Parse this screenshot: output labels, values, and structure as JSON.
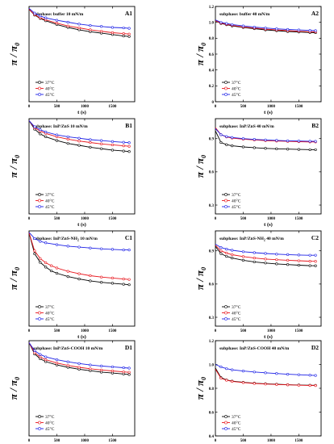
{
  "colors": {
    "37": "#000000",
    "40": "#e8141b",
    "45": "#1c20e6"
  },
  "chart_data": [
    {
      "id": "A1",
      "type": "line",
      "title": "subphase: buffer   10 mN/m",
      "tag": "A1",
      "xlabel": "t (s)",
      "ylabel": "π / π",
      "ylabel_sub": "0",
      "xlim": [
        0,
        1900
      ],
      "ylim": [
        0,
        1.0
      ],
      "yticks": [],
      "xticks": [
        0,
        500,
        1000,
        1500
      ],
      "legend_position": "lower-left",
      "grid": false,
      "series": [
        {
          "name": "37°C",
          "key": "37",
          "x": [
            0,
            100,
            200,
            300,
            500,
            700,
            900,
            1100,
            1300,
            1500,
            1700,
            1800
          ],
          "y": [
            0.97,
            0.91,
            0.875,
            0.85,
            0.81,
            0.78,
            0.755,
            0.735,
            0.72,
            0.705,
            0.69,
            0.685
          ]
        },
        {
          "name": "40°C",
          "key": "40",
          "x": [
            0,
            100,
            200,
            300,
            500,
            700,
            900,
            1100,
            1300,
            1500,
            1700,
            1800
          ],
          "y": [
            0.97,
            0.915,
            0.88,
            0.86,
            0.825,
            0.795,
            0.775,
            0.755,
            0.74,
            0.725,
            0.715,
            0.71
          ]
        },
        {
          "name": "45°C",
          "key": "45",
          "x": [
            0,
            100,
            200,
            300,
            500,
            700,
            900,
            1100,
            1300,
            1500,
            1700,
            1800
          ],
          "y": [
            0.98,
            0.93,
            0.9,
            0.88,
            0.855,
            0.835,
            0.815,
            0.8,
            0.79,
            0.78,
            0.775,
            0.77
          ]
        }
      ]
    },
    {
      "id": "A2",
      "type": "line",
      "title": "subphase: buffer   40 mN/m",
      "tag": "A2",
      "xlabel": "t (s)",
      "ylabel": "π / π",
      "ylabel_sub": "0",
      "xlim": [
        0,
        1900
      ],
      "ylim": [
        0,
        1.2
      ],
      "yticks": [
        0,
        0.2,
        0.4,
        0.6,
        0.8,
        1.0,
        1.2
      ],
      "xticks": [
        0,
        500,
        1000,
        1500
      ],
      "legend_position": "lower-left",
      "grid": false,
      "series": [
        {
          "name": "37°C",
          "key": "37",
          "x": [
            0,
            100,
            200,
            300,
            500,
            700,
            900,
            1100,
            1300,
            1500,
            1700,
            1800
          ],
          "y": [
            1.02,
            0.985,
            0.97,
            0.955,
            0.935,
            0.92,
            0.905,
            0.895,
            0.885,
            0.878,
            0.872,
            0.87
          ]
        },
        {
          "name": "40°C",
          "key": "40",
          "x": [
            0,
            100,
            200,
            300,
            500,
            700,
            900,
            1100,
            1300,
            1500,
            1700,
            1800
          ],
          "y": [
            1.02,
            0.99,
            0.975,
            0.962,
            0.942,
            0.928,
            0.914,
            0.904,
            0.895,
            0.888,
            0.882,
            0.88
          ]
        },
        {
          "name": "45°C",
          "key": "45",
          "x": [
            0,
            100,
            200,
            300,
            500,
            700,
            900,
            1100,
            1300,
            1500,
            1700,
            1800
          ],
          "y": [
            1.03,
            1.0,
            0.985,
            0.972,
            0.955,
            0.94,
            0.928,
            0.918,
            0.91,
            0.904,
            0.898,
            0.895
          ]
        }
      ]
    },
    {
      "id": "B1",
      "type": "line",
      "title": "subphase: InP/ZnS   10 mN/m",
      "tag": "B1",
      "xlabel": "t (s)",
      "ylabel": "π / π",
      "ylabel_sub": "0",
      "xlim": [
        0,
        1900
      ],
      "ylim": [
        0,
        1.0
      ],
      "yticks": [],
      "xticks": [
        0,
        500,
        1000,
        1500
      ],
      "legend_position": "lower-left",
      "grid": false,
      "series": [
        {
          "name": "37°C",
          "key": "37",
          "x": [
            0,
            100,
            200,
            300,
            500,
            700,
            900,
            1100,
            1300,
            1500,
            1700,
            1800
          ],
          "y": [
            0.98,
            0.89,
            0.84,
            0.81,
            0.77,
            0.74,
            0.72,
            0.7,
            0.685,
            0.67,
            0.66,
            0.655
          ]
        },
        {
          "name": "40°C",
          "key": "40",
          "x": [
            0,
            100,
            200,
            300,
            500,
            700,
            900,
            1100,
            1300,
            1500,
            1700,
            1800
          ],
          "y": [
            0.98,
            0.905,
            0.87,
            0.845,
            0.81,
            0.785,
            0.765,
            0.75,
            0.735,
            0.725,
            0.715,
            0.71
          ]
        },
        {
          "name": "45°C",
          "key": "45",
          "x": [
            0,
            100,
            200,
            300,
            500,
            700,
            900,
            1100,
            1300,
            1500,
            1700,
            1800
          ],
          "y": [
            0.98,
            0.915,
            0.885,
            0.86,
            0.83,
            0.81,
            0.795,
            0.78,
            0.77,
            0.76,
            0.752,
            0.748
          ]
        }
      ]
    },
    {
      "id": "B2",
      "type": "line",
      "title": "subphase: InP/ZnS   40 mN/m",
      "tag": "B2",
      "xlabel": "t (s)",
      "ylabel": "π / π",
      "ylabel_sub": "0",
      "xlim": [
        0,
        1900
      ],
      "ylim": [
        0.22,
        1.08
      ],
      "yticks": [
        0.3,
        0.6,
        0.9
      ],
      "xticks": [
        0,
        500,
        1000,
        1500
      ],
      "legend_position": "lower-left",
      "grid": false,
      "series": [
        {
          "name": "37°C",
          "key": "37",
          "x": [
            0,
            100,
            200,
            300,
            500,
            700,
            900,
            1100,
            1300,
            1500,
            1700,
            1800
          ],
          "y": [
            0.97,
            0.865,
            0.845,
            0.835,
            0.825,
            0.818,
            0.812,
            0.808,
            0.805,
            0.802,
            0.8,
            0.8
          ]
        },
        {
          "name": "40°C",
          "key": "40",
          "x": [
            0,
            100,
            200,
            300,
            500,
            700,
            900,
            1100,
            1300,
            1500,
            1700,
            1800
          ],
          "y": [
            1.0,
            0.935,
            0.915,
            0.905,
            0.895,
            0.888,
            0.882,
            0.878,
            0.875,
            0.872,
            0.87,
            0.87
          ]
        },
        {
          "name": "45°C",
          "key": "45",
          "x": [
            0,
            100,
            200,
            300,
            500,
            700,
            900,
            1100,
            1300,
            1500,
            1700,
            1800
          ],
          "y": [
            0.99,
            0.935,
            0.918,
            0.91,
            0.9,
            0.893,
            0.888,
            0.884,
            0.88,
            0.878,
            0.876,
            0.875
          ]
        }
      ]
    },
    {
      "id": "C1",
      "type": "line",
      "title": "subphase: InP/ZnS-NH",
      "title_sub": "2",
      "title_tail": "   10 mN/m",
      "tag": "C1",
      "xlabel": "t (s)",
      "ylabel": "π / π",
      "ylabel_sub": "0",
      "xlim": [
        0,
        1900
      ],
      "ylim": [
        0,
        1.0
      ],
      "yticks": [],
      "xticks": [
        0,
        500,
        1000,
        1500
      ],
      "legend_position": "lower-left",
      "grid": false,
      "series": [
        {
          "name": "37°C",
          "key": "37",
          "x": [
            0,
            100,
            200,
            300,
            400,
            500,
            700,
            900,
            1100,
            1300,
            1500,
            1700,
            1800
          ],
          "y": [
            0.98,
            0.76,
            0.67,
            0.62,
            0.58,
            0.555,
            0.52,
            0.495,
            0.475,
            0.46,
            0.45,
            0.44,
            0.435
          ]
        },
        {
          "name": "40°C",
          "key": "40",
          "x": [
            0,
            100,
            200,
            300,
            400,
            500,
            700,
            900,
            1100,
            1300,
            1500,
            1700,
            1800
          ],
          "y": [
            0.98,
            0.79,
            0.71,
            0.665,
            0.635,
            0.61,
            0.575,
            0.55,
            0.53,
            0.515,
            0.505,
            0.495,
            0.49
          ]
        },
        {
          "name": "45°C",
          "key": "45",
          "x": [
            0,
            100,
            200,
            300,
            500,
            700,
            900,
            1100,
            1300,
            1500,
            1700,
            1800
          ],
          "y": [
            0.985,
            0.92,
            0.89,
            0.875,
            0.855,
            0.84,
            0.83,
            0.82,
            0.812,
            0.806,
            0.8,
            0.8
          ]
        }
      ]
    },
    {
      "id": "C2",
      "type": "line",
      "title": "subphase: InP/ZnS-NH",
      "title_sub": "2",
      "title_tail": "   40 mN/m",
      "tag": "C2",
      "xlabel": "t (s)",
      "ylabel": "π / π",
      "ylabel_sub": "0",
      "xlim": [
        0,
        1900
      ],
      "ylim": [
        0.22,
        1.08
      ],
      "yticks": [
        0.3,
        0.6,
        0.9
      ],
      "xticks": [
        0,
        500,
        1000,
        1500
      ],
      "legend_position": "lower-left",
      "grid": false,
      "series": [
        {
          "name": "37°C",
          "key": "37",
          "x": [
            0,
            100,
            200,
            300,
            500,
            700,
            900,
            1100,
            1300,
            1500,
            1700,
            1800
          ],
          "y": [
            0.94,
            0.875,
            0.85,
            0.835,
            0.815,
            0.8,
            0.79,
            0.782,
            0.776,
            0.77,
            0.766,
            0.765
          ]
        },
        {
          "name": "40°C",
          "key": "40",
          "x": [
            0,
            100,
            200,
            300,
            500,
            700,
            900,
            1100,
            1300,
            1500,
            1700,
            1800
          ],
          "y": [
            0.95,
            0.9,
            0.88,
            0.865,
            0.848,
            0.835,
            0.826,
            0.82,
            0.815,
            0.81,
            0.806,
            0.805
          ]
        },
        {
          "name": "45°C",
          "key": "45",
          "x": [
            0,
            100,
            200,
            300,
            500,
            700,
            900,
            1100,
            1300,
            1500,
            1700,
            1800
          ],
          "y": [
            0.96,
            0.93,
            0.915,
            0.905,
            0.892,
            0.883,
            0.876,
            0.87,
            0.866,
            0.862,
            0.86,
            0.86
          ]
        }
      ]
    },
    {
      "id": "D1",
      "type": "line",
      "title": "subphase: InP/ZnS-COOH   10 mN/m",
      "tag": "D1",
      "xlabel": "t (s)",
      "ylabel": "π / π",
      "ylabel_sub": "0",
      "xlim": [
        0,
        1900
      ],
      "ylim": [
        0,
        1.0
      ],
      "yticks": [],
      "xticks": [
        0,
        500,
        1000,
        1500
      ],
      "legend_position": "lower-left",
      "grid": false,
      "series": [
        {
          "name": "37°C",
          "key": "37",
          "x": [
            0,
            100,
            200,
            300,
            500,
            700,
            900,
            1100,
            1300,
            1500,
            1700,
            1800
          ],
          "y": [
            0.98,
            0.86,
            0.81,
            0.78,
            0.745,
            0.72,
            0.7,
            0.685,
            0.67,
            0.66,
            0.65,
            0.645
          ]
        },
        {
          "name": "40°C",
          "key": "40",
          "x": [
            0,
            100,
            200,
            300,
            500,
            700,
            900,
            1100,
            1300,
            1500,
            1700,
            1800
          ],
          "y": [
            0.98,
            0.875,
            0.83,
            0.8,
            0.765,
            0.74,
            0.72,
            0.705,
            0.692,
            0.682,
            0.672,
            0.668
          ]
        },
        {
          "name": "45°C",
          "key": "45",
          "x": [
            0,
            100,
            200,
            300,
            500,
            700,
            900,
            1100,
            1300,
            1500,
            1700,
            1800
          ],
          "y": [
            0.98,
            0.895,
            0.855,
            0.83,
            0.8,
            0.778,
            0.76,
            0.745,
            0.734,
            0.725,
            0.716,
            0.712
          ]
        }
      ]
    },
    {
      "id": "D2",
      "type": "line",
      "title": "subphase: InP/ZnS-COOH   40 mN/m",
      "tag": "D2",
      "xlabel": "t (s)",
      "ylabel": "π / π",
      "ylabel_sub": "0",
      "xlim": [
        0,
        1900
      ],
      "ylim": [
        0.4,
        1.2
      ],
      "yticks": [
        0.4,
        0.6,
        0.8,
        1.0,
        1.2
      ],
      "xticks": [
        0,
        500,
        1000,
        1500
      ],
      "legend_position": "lower-left",
      "grid": false,
      "series": [
        {
          "name": "37°C",
          "key": "37",
          "x": [
            0,
            100,
            200,
            300,
            500,
            700,
            900,
            1100,
            1300,
            1500,
            1700,
            1800
          ],
          "y": [
            0.97,
            0.89,
            0.87,
            0.86,
            0.85,
            0.843,
            0.838,
            0.834,
            0.83,
            0.828,
            0.826,
            0.825
          ]
        },
        {
          "name": "40°C",
          "key": "40",
          "x": [
            0,
            100,
            200,
            300,
            500,
            700,
            900,
            1100,
            1300,
            1500,
            1700,
            1800
          ],
          "y": [
            0.96,
            0.885,
            0.868,
            0.858,
            0.848,
            0.841,
            0.836,
            0.832,
            0.829,
            0.826,
            0.824,
            0.823
          ]
        },
        {
          "name": "45°C",
          "key": "45",
          "x": [
            0,
            100,
            200,
            300,
            500,
            700,
            900,
            1100,
            1300,
            1500,
            1700,
            1800
          ],
          "y": [
            1.0,
            0.98,
            0.965,
            0.955,
            0.945,
            0.937,
            0.93,
            0.924,
            0.918,
            0.914,
            0.91,
            0.908
          ]
        }
      ]
    }
  ]
}
